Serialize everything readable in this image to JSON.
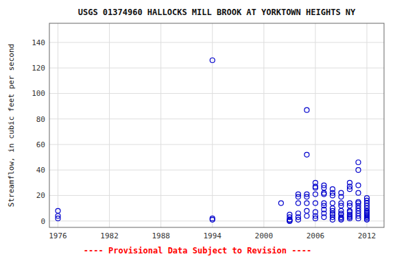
{
  "chart_data": {
    "type": "scatter",
    "title": "USGS 01374960 HALLOCKS MILL BROOK AT YORKTOWN HEIGHTS NY",
    "ylabel": "Streamflow, in cubic feet per second",
    "annotations": [
      {
        "text": "---- Provisional Data Subject to Revision ----",
        "color": "#ff0000"
      }
    ],
    "color": "#0000cc",
    "marker": "circle",
    "grid": true,
    "xlim": [
      1975,
      2014
    ],
    "ylim": [
      -5,
      155
    ],
    "xticks": [
      1976,
      1982,
      1988,
      1994,
      2000,
      2006,
      2012
    ],
    "yticks": [
      0,
      20,
      40,
      60,
      80,
      100,
      120,
      140
    ],
    "x": [
      1976,
      1976,
      1976,
      1994,
      1994,
      1994,
      2002,
      2003,
      2003,
      2003,
      2003,
      2003,
      2003,
      2004,
      2004,
      2004,
      2004,
      2004,
      2004,
      2005,
      2005,
      2005,
      2005,
      2005,
      2005,
      2005,
      2006,
      2006,
      2006,
      2006,
      2006,
      2006,
      2006,
      2006,
      2007,
      2007,
      2007,
      2007,
      2007,
      2007,
      2007,
      2007,
      2007,
      2008,
      2008,
      2008,
      2008,
      2008,
      2008,
      2008,
      2008,
      2008,
      2008,
      2009,
      2009,
      2009,
      2009,
      2009,
      2009,
      2009,
      2009,
      2009,
      2009,
      2010,
      2010,
      2010,
      2010,
      2010,
      2010,
      2010,
      2010,
      2010,
      2010,
      2010,
      2011,
      2011,
      2011,
      2011,
      2011,
      2011,
      2011,
      2011,
      2011,
      2011,
      2011,
      2011,
      2012,
      2012,
      2012,
      2012,
      2012,
      2012,
      2012,
      2012,
      2012,
      2012,
      2012,
      2012,
      2012
    ],
    "y": [
      8,
      4,
      2,
      126,
      2,
      1,
      14,
      5,
      3,
      1,
      1,
      0,
      0,
      21,
      19,
      14,
      6,
      3,
      1,
      87,
      52,
      21,
      19,
      14,
      8,
      4,
      30,
      27,
      26,
      21,
      14,
      7,
      4,
      2,
      28,
      26,
      22,
      21,
      14,
      12,
      9,
      6,
      3,
      25,
      22,
      20,
      14,
      10,
      8,
      6,
      5,
      3,
      1,
      22,
      19,
      14,
      12,
      8,
      6,
      5,
      3,
      2,
      1,
      30,
      27,
      25,
      14,
      12,
      8,
      7,
      5,
      4,
      3,
      2,
      46,
      40,
      28,
      22,
      15,
      14,
      12,
      10,
      8,
      6,
      4,
      2,
      18,
      16,
      14,
      12,
      10,
      8,
      7,
      6,
      5,
      4,
      3,
      2,
      1
    ]
  }
}
